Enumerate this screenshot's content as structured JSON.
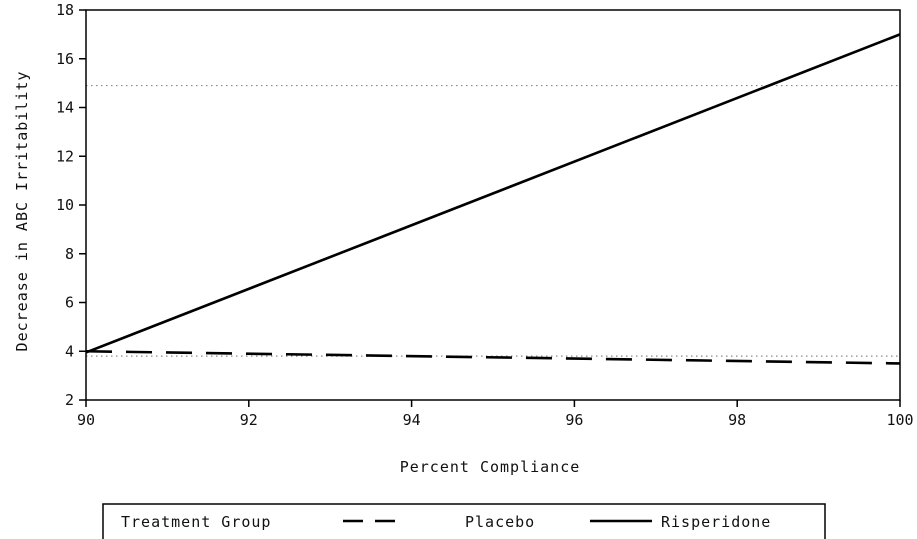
{
  "chart_data": {
    "type": "line",
    "title": "",
    "xlabel": "Percent Compliance",
    "ylabel": "Decrease in ABC Irritability",
    "xlim": [
      90,
      100
    ],
    "ylim": [
      2,
      18
    ],
    "xticks": [
      "90",
      "92",
      "94",
      "96",
      "98",
      "100"
    ],
    "yticks": [
      "2",
      "4",
      "6",
      "8",
      "10",
      "12",
      "14",
      "16",
      "18"
    ],
    "grid": false,
    "legend_position": "bottom",
    "legend_title": "Treatment Group",
    "series": [
      {
        "name": "Placebo",
        "style": "dashed",
        "color": "#000000",
        "x": [
          90,
          100
        ],
        "y": [
          4.0,
          3.5
        ]
      },
      {
        "name": "Risperidone",
        "style": "solid",
        "color": "#000000",
        "x": [
          90,
          100
        ],
        "y": [
          3.95,
          17.0
        ]
      }
    ],
    "reference_lines": [
      {
        "axis": "y",
        "value": 14.9,
        "style": "dotted",
        "color": "#888888"
      },
      {
        "axis": "y",
        "value": 3.8,
        "style": "dotted",
        "color": "#888888"
      }
    ]
  }
}
